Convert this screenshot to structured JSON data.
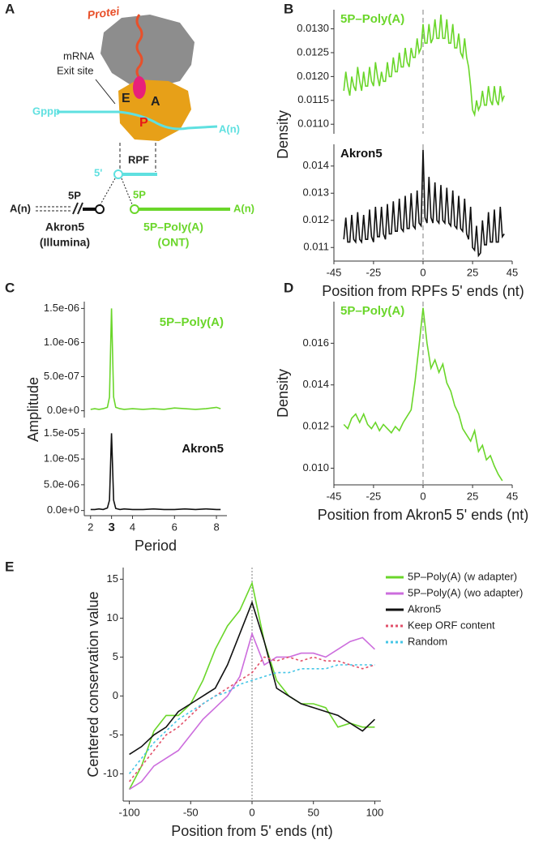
{
  "panel_labels": [
    "A",
    "B",
    "C",
    "D",
    "E"
  ],
  "diagram": {
    "protein_label": "Protei",
    "mrna_label": "mRNA",
    "exit_site": "Exit site",
    "site_e": "E",
    "site_a": "A",
    "site_p": "P",
    "cap": "Gppp",
    "polya_top": "A(n)",
    "rpf": "RPF",
    "five_prime": "5'",
    "akron_5p": "5P",
    "ont_5p": "5P",
    "akron_polya": "A(n)",
    "ont_polya": "A(n)",
    "akron5": "Akron5",
    "illumina": "(Illumina)",
    "ont_name": "5P–Poly(A)",
    "ont": "(ONT)"
  },
  "chart_data": [
    {
      "type": "line",
      "ylabel": "Density",
      "legend": "top-left",
      "vline": 0,
      "xlim": [
        -45,
        45
      ],
      "ylim": [
        0.0108,
        0.0134
      ],
      "yticks": [
        {
          "value": 0.011,
          "label": "0.0110"
        },
        0.0115,
        {
          "value": 0.012,
          "label": "0.0120"
        },
        0.0125,
        {
          "value": 0.013,
          "label": "0.0130"
        }
      ],
      "x": [
        -40,
        -39,
        -38,
        -37,
        -36,
        -35,
        -34,
        -33,
        -32,
        -31,
        -30,
        -29,
        -28,
        -27,
        -26,
        -25,
        -24,
        -23,
        -22,
        -21,
        -20,
        -19,
        -18,
        -17,
        -16,
        -15,
        -14,
        -13,
        -12,
        -11,
        -10,
        -9,
        -8,
        -7,
        -6,
        -5,
        -4,
        -3,
        -2,
        -1,
        0,
        1,
        2,
        3,
        4,
        5,
        6,
        7,
        8,
        9,
        10,
        11,
        12,
        13,
        14,
        15,
        16,
        17,
        18,
        19,
        20,
        21,
        22,
        23,
        24,
        25,
        26,
        27,
        28,
        29,
        30,
        31,
        32,
        33,
        34,
        35,
        36,
        37,
        38,
        39,
        40,
        41
      ],
      "series": [
        {
          "name": "5P–Poly(A)",
          "color": "#6ad62a",
          "values": [
            0.0117,
            0.0121,
            0.0118,
            0.0116,
            0.012,
            0.0118,
            0.0117,
            0.0122,
            0.0119,
            0.0117,
            0.0121,
            0.0118,
            0.0118,
            0.0122,
            0.0119,
            0.0118,
            0.0123,
            0.012,
            0.0118,
            0.0121,
            0.0119,
            0.0119,
            0.0123,
            0.012,
            0.012,
            0.0124,
            0.0121,
            0.0121,
            0.0125,
            0.0122,
            0.0122,
            0.0126,
            0.0123,
            0.0122,
            0.0126,
            0.0124,
            0.0124,
            0.0128,
            0.0125,
            0.0126,
            0.0131,
            0.0127,
            0.0127,
            0.0131,
            0.0127,
            0.0128,
            0.0132,
            0.0128,
            0.0128,
            0.0133,
            0.0128,
            0.0128,
            0.0132,
            0.0127,
            0.0127,
            0.0131,
            0.0126,
            0.0126,
            0.0129,
            0.0125,
            0.0124,
            0.0128,
            0.0124,
            0.0122,
            0.0118,
            0.0113,
            0.0112,
            0.0115,
            0.0113,
            0.0114,
            0.0117,
            0.0114,
            0.0114,
            0.0118,
            0.0115,
            0.0114,
            0.0118,
            0.0115,
            0.0114,
            0.0118,
            0.0115,
            0.0116
          ]
        }
      ]
    },
    {
      "type": "line",
      "xlabel": "Position from RPFs 5' ends (nt)",
      "legend": "top-left",
      "vline": 0,
      "xlim": [
        -45,
        45
      ],
      "ylim": [
        0.0105,
        0.0148
      ],
      "xticks": [
        -45,
        -25,
        0,
        25,
        45
      ],
      "yticks": [
        0.011,
        0.012,
        0.013,
        0.014
      ],
      "x": [
        -40,
        -39,
        -38,
        -37,
        -36,
        -35,
        -34,
        -33,
        -32,
        -31,
        -30,
        -29,
        -28,
        -27,
        -26,
        -25,
        -24,
        -23,
        -22,
        -21,
        -20,
        -19,
        -18,
        -17,
        -16,
        -15,
        -14,
        -13,
        -12,
        -11,
        -10,
        -9,
        -8,
        -7,
        -6,
        -5,
        -4,
        -3,
        -2,
        -1,
        0,
        1,
        2,
        3,
        4,
        5,
        6,
        7,
        8,
        9,
        10,
        11,
        12,
        13,
        14,
        15,
        16,
        17,
        18,
        19,
        20,
        21,
        22,
        23,
        24,
        25,
        26,
        27,
        28,
        29,
        30,
        31,
        32,
        33,
        34,
        35,
        36,
        37,
        38,
        39,
        40,
        41
      ],
      "series": [
        {
          "name": "Akron5",
          "color": "#111111",
          "values": [
            0.0113,
            0.0121,
            0.0112,
            0.0112,
            0.0122,
            0.0113,
            0.0112,
            0.0123,
            0.0113,
            0.0112,
            0.0122,
            0.0113,
            0.0113,
            0.0124,
            0.0114,
            0.0112,
            0.0125,
            0.0114,
            0.0114,
            0.0125,
            0.0115,
            0.0113,
            0.0126,
            0.0115,
            0.0115,
            0.0127,
            0.0116,
            0.0116,
            0.0128,
            0.0117,
            0.0116,
            0.0129,
            0.0117,
            0.0117,
            0.013,
            0.0118,
            0.0117,
            0.0131,
            0.0119,
            0.0118,
            0.0146,
            0.0121,
            0.0119,
            0.0136,
            0.0121,
            0.0119,
            0.0134,
            0.012,
            0.0119,
            0.0133,
            0.012,
            0.0119,
            0.0132,
            0.0119,
            0.0118,
            0.0131,
            0.0118,
            0.0117,
            0.0129,
            0.0117,
            0.0116,
            0.0128,
            0.0115,
            0.0113,
            0.0125,
            0.011,
            0.0109,
            0.0118,
            0.0107,
            0.0108,
            0.012,
            0.0111,
            0.0111,
            0.0123,
            0.0112,
            0.0112,
            0.0124,
            0.0112,
            0.0112,
            0.0125,
            0.0114,
            0.0115
          ]
        }
      ]
    },
    {
      "type": "line",
      "ylabel": "Amplitude",
      "legend": "top-right",
      "xlim": [
        1.7,
        8.5
      ],
      "ylim": [
        -1e-07,
        1.6e-06
      ],
      "yticks": [
        {
          "value": 0,
          "label": "0.0e+0"
        },
        {
          "value": 5e-07,
          "label": "5.0e-07"
        },
        {
          "value": 1e-06,
          "label": "1.0e-06"
        },
        {
          "value": 1.5e-06,
          "label": "1.5e-06"
        }
      ],
      "x": [
        2,
        2.2,
        2.4,
        2.6,
        2.8,
        2.9,
        3,
        3.1,
        3.2,
        3.4,
        3.6,
        4,
        4.5,
        5,
        5.5,
        6,
        6.5,
        7,
        7.5,
        8,
        8.2
      ],
      "series": [
        {
          "name": "5P–Poly(A)",
          "color": "#6ad62a",
          "values": [
            2e-08,
            3e-08,
            2e-08,
            3e-08,
            5e-08,
            2e-07,
            1.5e-06,
            2e-07,
            5e-08,
            3e-08,
            2e-08,
            3e-08,
            2e-08,
            3e-08,
            2e-08,
            4e-08,
            3e-08,
            2e-08,
            3e-08,
            5e-08,
            3e-08
          ]
        }
      ]
    },
    {
      "type": "line",
      "xlabel": "Period",
      "legend": "top-right",
      "highlight_xtick": 3,
      "xlim": [
        1.7,
        8.5
      ],
      "ylim": [
        -1e-06,
        1.6e-05
      ],
      "xticks": [
        2,
        3,
        4,
        6,
        8
      ],
      "yticks": [
        {
          "value": 0,
          "label": "0.0e+0"
        },
        {
          "value": 5e-06,
          "label": "5.0e-06"
        },
        {
          "value": 1e-05,
          "label": "1.0e-05"
        },
        {
          "value": 1.5e-05,
          "label": "1.5e-05"
        }
      ],
      "x": [
        2,
        2.2,
        2.4,
        2.6,
        2.8,
        2.9,
        3,
        3.1,
        3.2,
        3.4,
        3.6,
        4,
        4.5,
        5,
        5.5,
        6,
        6.5,
        7,
        7.5,
        8,
        8.2
      ],
      "series": [
        {
          "name": "Akron5",
          "color": "#111111",
          "values": [
            2e-07,
            2e-07,
            3e-07,
            2e-07,
            5e-07,
            2e-06,
            1.5e-05,
            2e-06,
            4e-07,
            2e-07,
            3e-07,
            2e-07,
            2e-07,
            3e-07,
            2e-07,
            2e-07,
            3e-07,
            2e-07,
            3e-07,
            2e-07,
            2e-07
          ]
        }
      ]
    },
    {
      "type": "line",
      "ylabel": "Density",
      "xlabel": "Position from Akron5 5' ends (nt)",
      "legend": "top-left",
      "vline": 0,
      "xlim": [
        -45,
        45
      ],
      "ylim": [
        0.0092,
        0.018
      ],
      "xticks": [
        -45,
        -25,
        0,
        25,
        45
      ],
      "yticks": [
        {
          "value": 0.01,
          "label": "0.010"
        },
        0.012,
        0.014,
        0.016
      ],
      "x": [
        -40,
        -38,
        -36,
        -34,
        -32,
        -30,
        -28,
        -26,
        -24,
        -22,
        -20,
        -18,
        -16,
        -14,
        -12,
        -10,
        -8,
        -6,
        -4,
        -2,
        0,
        2,
        4,
        6,
        8,
        10,
        12,
        14,
        16,
        18,
        20,
        22,
        24,
        26,
        28,
        30,
        32,
        34,
        36,
        38,
        40
      ],
      "series": [
        {
          "name": "5P–Poly(A)",
          "color": "#6ad62a",
          "values": [
            0.0121,
            0.0119,
            0.0124,
            0.0126,
            0.0122,
            0.0126,
            0.0121,
            0.0119,
            0.0122,
            0.0118,
            0.0121,
            0.0119,
            0.0117,
            0.012,
            0.0118,
            0.0122,
            0.0125,
            0.0128,
            0.0142,
            0.0159,
            0.0177,
            0.016,
            0.0148,
            0.0152,
            0.0146,
            0.015,
            0.0141,
            0.0137,
            0.013,
            0.0126,
            0.0119,
            0.0116,
            0.0113,
            0.0118,
            0.0108,
            0.0111,
            0.0104,
            0.0106,
            0.0101,
            0.0097,
            0.0094
          ]
        }
      ]
    },
    {
      "type": "line",
      "ylabel": "Centered conservation value",
      "xlabel": "Position from 5' ends (nt)",
      "legend": "right",
      "vline": 0,
      "xlim": [
        -105,
        105
      ],
      "ylim": [
        -13.5,
        16.5
      ],
      "xticks": [
        -100,
        -50,
        0,
        50,
        100
      ],
      "yticks": [
        -10,
        -5,
        0,
        5,
        10,
        15
      ],
      "x": [
        -100,
        -90,
        -80,
        -70,
        -60,
        -50,
        -40,
        -30,
        -20,
        -10,
        0,
        10,
        20,
        30,
        40,
        50,
        60,
        70,
        80,
        90,
        100
      ],
      "series": [
        {
          "name": "5P–Poly(A) (w adapter)",
          "color": "#6ad62a",
          "values": [
            -12,
            -9,
            -4.5,
            -2.5,
            -2.5,
            -1,
            2,
            6,
            9,
            11,
            14.5,
            7,
            2,
            0,
            -1,
            -1,
            -1.5,
            -4,
            -3.5,
            -4,
            -4
          ]
        },
        {
          "name": "5P–Poly(A) (wo adapter)",
          "color": "#cc6ddd",
          "values": [
            -12,
            -11,
            -9,
            -8,
            -7,
            -5,
            -3,
            -1.5,
            0,
            2.5,
            8,
            4,
            5,
            5,
            5.5,
            5.5,
            5,
            6,
            7,
            7.5,
            6
          ]
        },
        {
          "name": "Akron5",
          "color": "#111111",
          "values": [
            -7.5,
            -6.5,
            -5,
            -4,
            -2,
            -1,
            0,
            1,
            4,
            8,
            12,
            7,
            1,
            0,
            -1,
            -1.5,
            -2,
            -2.5,
            -3.5,
            -4.5,
            -3
          ]
        },
        {
          "name": "Keep ORF content",
          "color": "#e2506a",
          "dash": true,
          "values": [
            -11,
            -9,
            -7,
            -5,
            -4,
            -2.5,
            -1,
            0,
            1,
            2,
            3,
            5,
            4.5,
            5,
            4.5,
            5,
            4.5,
            4.5,
            4,
            3.5,
            4
          ]
        },
        {
          "name": "Random",
          "color": "#45c6e6",
          "dash": true,
          "values": [
            -10,
            -8,
            -6,
            -4.5,
            -3,
            -2,
            -1,
            0,
            0.5,
            1.5,
            2,
            2.5,
            3,
            3,
            3.5,
            3.5,
            3.5,
            4,
            4,
            4,
            4
          ]
        }
      ]
    }
  ]
}
